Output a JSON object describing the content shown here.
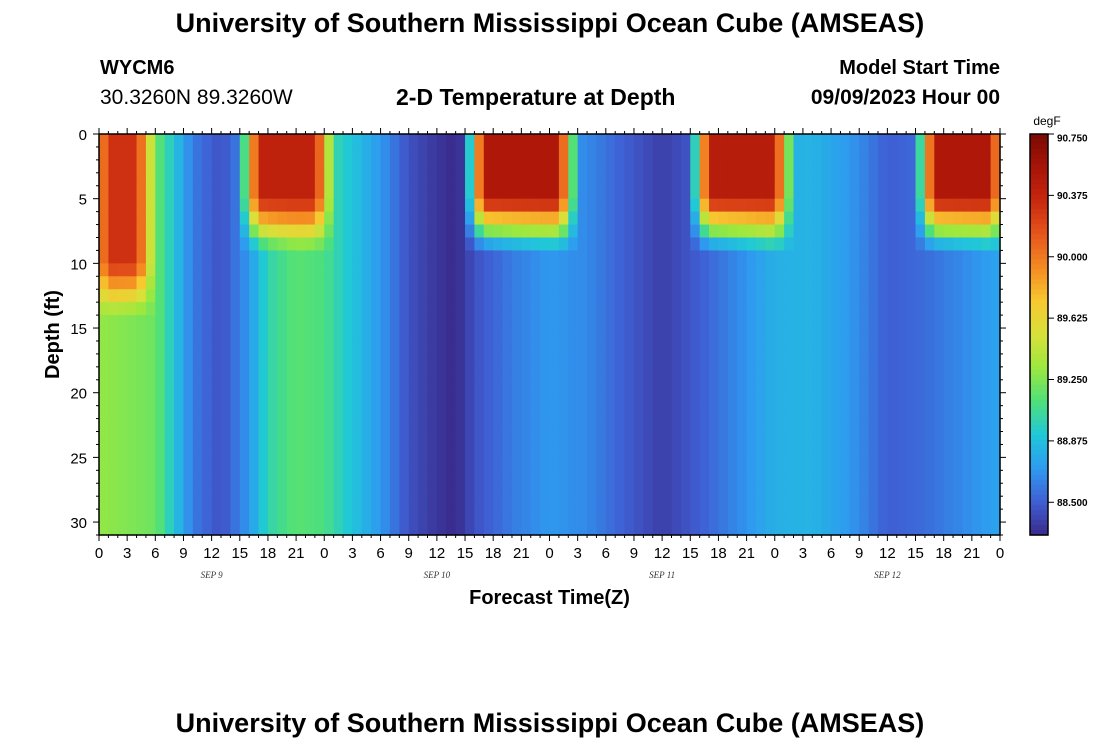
{
  "header": {
    "title": "University of Southern Mississippi Ocean Cube (AMSEAS)",
    "station_id": "WYCM6",
    "station_coords": "30.3260N  89.3260W",
    "subtitle": "2-D Temperature at Depth",
    "model_start_label": "Model Start Time",
    "model_start_time": "09/09/2023 Hour 00"
  },
  "footer": {
    "title": "University of Southern Mississippi Ocean Cube (AMSEAS)"
  },
  "chart_data": {
    "type": "heatmap",
    "title": "2-D Temperature at Depth",
    "xlabel": "Forecast Time(Z)",
    "ylabel": "Depth (ft)",
    "xlim": [
      0,
      96
    ],
    "ylim": [
      0,
      31
    ],
    "x_unit": "hours from model start",
    "x_tick_values": [
      0,
      3,
      6,
      9,
      12,
      15,
      18,
      21,
      24,
      27,
      30,
      33,
      36,
      39,
      42,
      45,
      48,
      51,
      54,
      57,
      60,
      63,
      66,
      69,
      72,
      75,
      78,
      81,
      84,
      87,
      90,
      93,
      96
    ],
    "x_tick_labels": [
      "0",
      "3",
      "6",
      "9",
      "12",
      "15",
      "18",
      "21",
      "0",
      "3",
      "6",
      "9",
      "12",
      "15",
      "18",
      "21",
      "0",
      "3",
      "6",
      "9",
      "12",
      "15",
      "18",
      "21",
      "0",
      "3",
      "6",
      "9",
      "12",
      "15",
      "18",
      "21",
      "0"
    ],
    "date_labels": [
      {
        "text": "SEP 9",
        "x": 12
      },
      {
        "text": "SEP 10",
        "x": 36
      },
      {
        "text": "SEP 11",
        "x": 60
      },
      {
        "text": "SEP 12",
        "x": 84
      }
    ],
    "y_tick_values": [
      0,
      5,
      10,
      15,
      20,
      25,
      30
    ],
    "y_tick_labels": [
      "0",
      "5",
      "10",
      "15",
      "20",
      "25",
      "30"
    ],
    "colorbar": {
      "unit": "degF",
      "min": 88.3,
      "max": 90.75,
      "tick_values": [
        90.75,
        90.375,
        90.0,
        89.625,
        89.25,
        88.875,
        88.5
      ],
      "tick_labels": [
        "90.750",
        "90.375",
        "90.000",
        "89.625",
        "89.250",
        "88.875",
        "88.500"
      ],
      "colors": [
        "#3a2a8a",
        "#3f5fd4",
        "#2e9bf0",
        "#20c8d8",
        "#4fe07a",
        "#9be83e",
        "#d8e03a",
        "#f7c830",
        "#f48a22",
        "#e6551c",
        "#c8280e",
        "#a81408",
        "#7a0a04"
      ]
    },
    "series": {
      "surface_depth_ft": 0,
      "deep_depth_ft": 31,
      "deep_profile": [
        {
          "hour": 0,
          "degF": 89.3
        },
        {
          "hour": 6,
          "degF": 89.2
        },
        {
          "hour": 8,
          "degF": 88.9
        },
        {
          "hour": 10,
          "degF": 88.6
        },
        {
          "hour": 13,
          "degF": 88.45
        },
        {
          "hour": 16,
          "degF": 88.7
        },
        {
          "hour": 18,
          "degF": 89.0
        },
        {
          "hour": 21,
          "degF": 89.15
        },
        {
          "hour": 24,
          "degF": 89.1
        },
        {
          "hour": 26,
          "degF": 88.95
        },
        {
          "hour": 30,
          "degF": 88.7
        },
        {
          "hour": 33,
          "degF": 88.45
        },
        {
          "hour": 36,
          "degF": 88.35
        },
        {
          "hour": 38,
          "degF": 88.3
        },
        {
          "hour": 40,
          "degF": 88.45
        },
        {
          "hour": 44,
          "degF": 88.6
        },
        {
          "hour": 48,
          "degF": 88.7
        },
        {
          "hour": 52,
          "degF": 88.65
        },
        {
          "hour": 56,
          "degF": 88.5
        },
        {
          "hour": 60,
          "degF": 88.38
        },
        {
          "hour": 64,
          "degF": 88.5
        },
        {
          "hour": 68,
          "degF": 88.65
        },
        {
          "hour": 72,
          "degF": 88.8
        },
        {
          "hour": 76,
          "degF": 88.82
        },
        {
          "hour": 80,
          "degF": 88.7
        },
        {
          "hour": 84,
          "degF": 88.5
        },
        {
          "hour": 88,
          "degF": 88.55
        },
        {
          "hour": 92,
          "degF": 88.65
        },
        {
          "hour": 96,
          "degF": 88.75
        }
      ],
      "warm_surface_events": [
        {
          "start_hour": 0,
          "end_hour": 5,
          "depth_ft": 10,
          "degF": 90.3
        },
        {
          "start_hour": 16,
          "end_hour": 24,
          "depth_ft": 5,
          "degF": 90.4
        },
        {
          "start_hour": 40,
          "end_hour": 50,
          "depth_ft": 5,
          "degF": 90.5
        },
        {
          "start_hour": 64,
          "end_hour": 73,
          "depth_ft": 5,
          "degF": 90.45
        },
        {
          "start_hour": 88,
          "end_hour": 96,
          "depth_ft": 5,
          "degF": 90.5
        }
      ]
    }
  }
}
